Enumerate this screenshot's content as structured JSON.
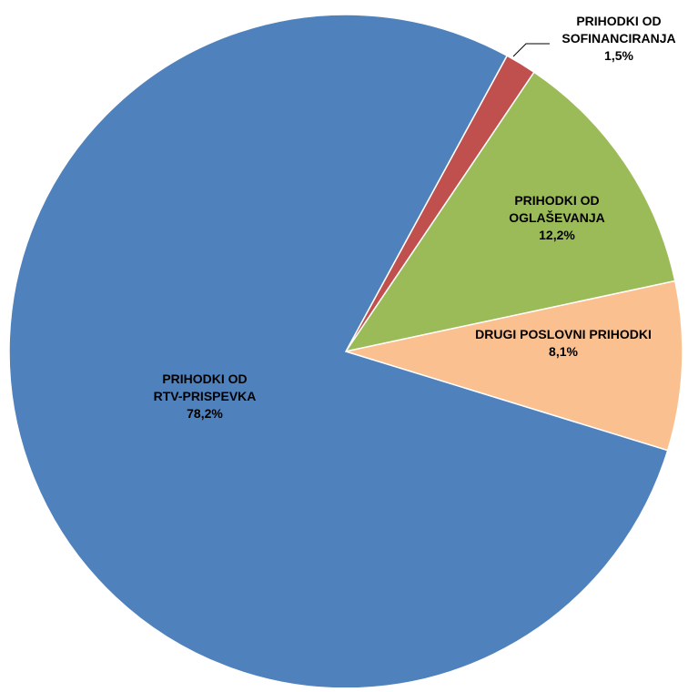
{
  "chart_data": {
    "type": "pie",
    "title": "",
    "slices": [
      {
        "label_lines": [
          "PRIHODKI OD",
          "RTV-PRISPEVKA"
        ],
        "percent_label": "78,2%",
        "value": 78.2,
        "color": "#4F81BD"
      },
      {
        "label_lines": [
          "PRIHODKI OD",
          "SOFINANCIRANJA"
        ],
        "percent_label": "1,5%",
        "value": 1.5,
        "color": "#C0504D"
      },
      {
        "label_lines": [
          "PRIHODKI OD",
          "OGLAŠEVANJA"
        ],
        "percent_label": "12,2%",
        "value": 12.2,
        "color": "#9BBB59"
      },
      {
        "label_lines": [
          "DRUGI POSLOVNI PRIHODKI"
        ],
        "percent_label": "8,1%",
        "value": 8.1,
        "color": "#FAC090"
      }
    ],
    "legend": "none"
  }
}
